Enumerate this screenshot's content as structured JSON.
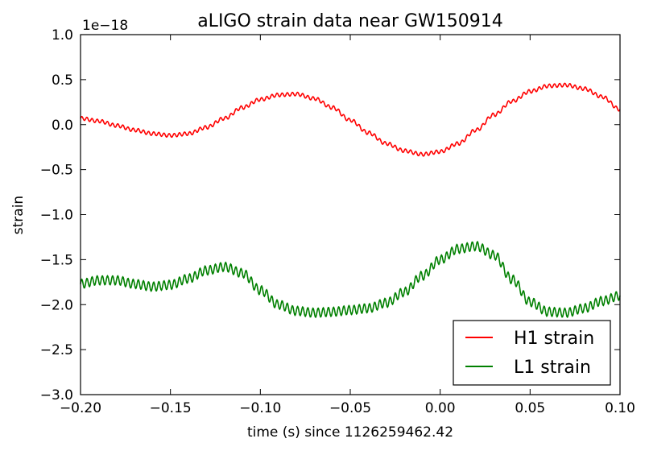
{
  "chart_data": {
    "type": "line",
    "title": "aLIGO strain data near GW150914",
    "xlabel": "time (s) since 1126259462.42",
    "ylabel": "strain",
    "offset_text": "1e−18",
    "xlim": [
      -0.2,
      0.1
    ],
    "ylim": [
      -3.0,
      1.0
    ],
    "y_scale_exponent": -18,
    "grid": false,
    "legend_position": "lower right",
    "x_ticks": [
      -0.2,
      -0.15,
      -0.1,
      -0.05,
      0.0,
      0.05,
      0.1
    ],
    "x_tick_labels": [
      "−0.20",
      "−0.15",
      "−0.10",
      "−0.05",
      "0.00",
      "0.05",
      "0.10"
    ],
    "y_ticks": [
      1.0,
      0.5,
      0.0,
      -0.5,
      -1.0,
      -1.5,
      -2.0,
      -2.5,
      -3.0
    ],
    "y_tick_labels": [
      "1.0",
      "0.5",
      "0.0",
      "−0.5",
      "−1.0",
      "−1.5",
      "−2.0",
      "−2.5",
      "−3.0"
    ],
    "series": [
      {
        "name": "H1 strain",
        "color": "#ff0000",
        "x": [
          -0.2,
          -0.19,
          -0.18,
          -0.17,
          -0.16,
          -0.15,
          -0.14,
          -0.13,
          -0.12,
          -0.11,
          -0.1,
          -0.09,
          -0.08,
          -0.07,
          -0.06,
          -0.05,
          -0.04,
          -0.03,
          -0.02,
          -0.01,
          0.0,
          0.01,
          0.02,
          0.03,
          0.04,
          0.05,
          0.06,
          0.07,
          0.08,
          0.09,
          0.1
        ],
        "y": [
          0.07,
          0.04,
          -0.01,
          -0.06,
          -0.1,
          -0.12,
          -0.1,
          -0.03,
          0.07,
          0.19,
          0.28,
          0.33,
          0.34,
          0.29,
          0.19,
          0.05,
          -0.09,
          -0.21,
          -0.29,
          -0.33,
          -0.3,
          -0.21,
          -0.06,
          0.11,
          0.26,
          0.37,
          0.43,
          0.44,
          0.4,
          0.31,
          0.17
        ],
        "ripple_amplitude": 0.02
      },
      {
        "name": "L1 strain",
        "color": "#008000",
        "x": [
          -0.2,
          -0.19,
          -0.18,
          -0.17,
          -0.16,
          -0.15,
          -0.14,
          -0.13,
          -0.12,
          -0.11,
          -0.1,
          -0.09,
          -0.08,
          -0.07,
          -0.06,
          -0.05,
          -0.04,
          -0.03,
          -0.02,
          -0.01,
          0.0,
          0.01,
          0.02,
          0.03,
          0.04,
          0.05,
          0.06,
          0.07,
          0.08,
          0.09,
          0.1
        ],
        "y": [
          -1.77,
          -1.73,
          -1.73,
          -1.77,
          -1.8,
          -1.78,
          -1.71,
          -1.62,
          -1.58,
          -1.65,
          -1.84,
          -2.0,
          -2.07,
          -2.09,
          -2.08,
          -2.06,
          -2.04,
          -1.98,
          -1.86,
          -1.68,
          -1.5,
          -1.38,
          -1.35,
          -1.45,
          -1.72,
          -1.97,
          -2.08,
          -2.09,
          -2.04,
          -1.96,
          -1.9
        ],
        "ripple_amplitude": 0.05
      }
    ]
  }
}
